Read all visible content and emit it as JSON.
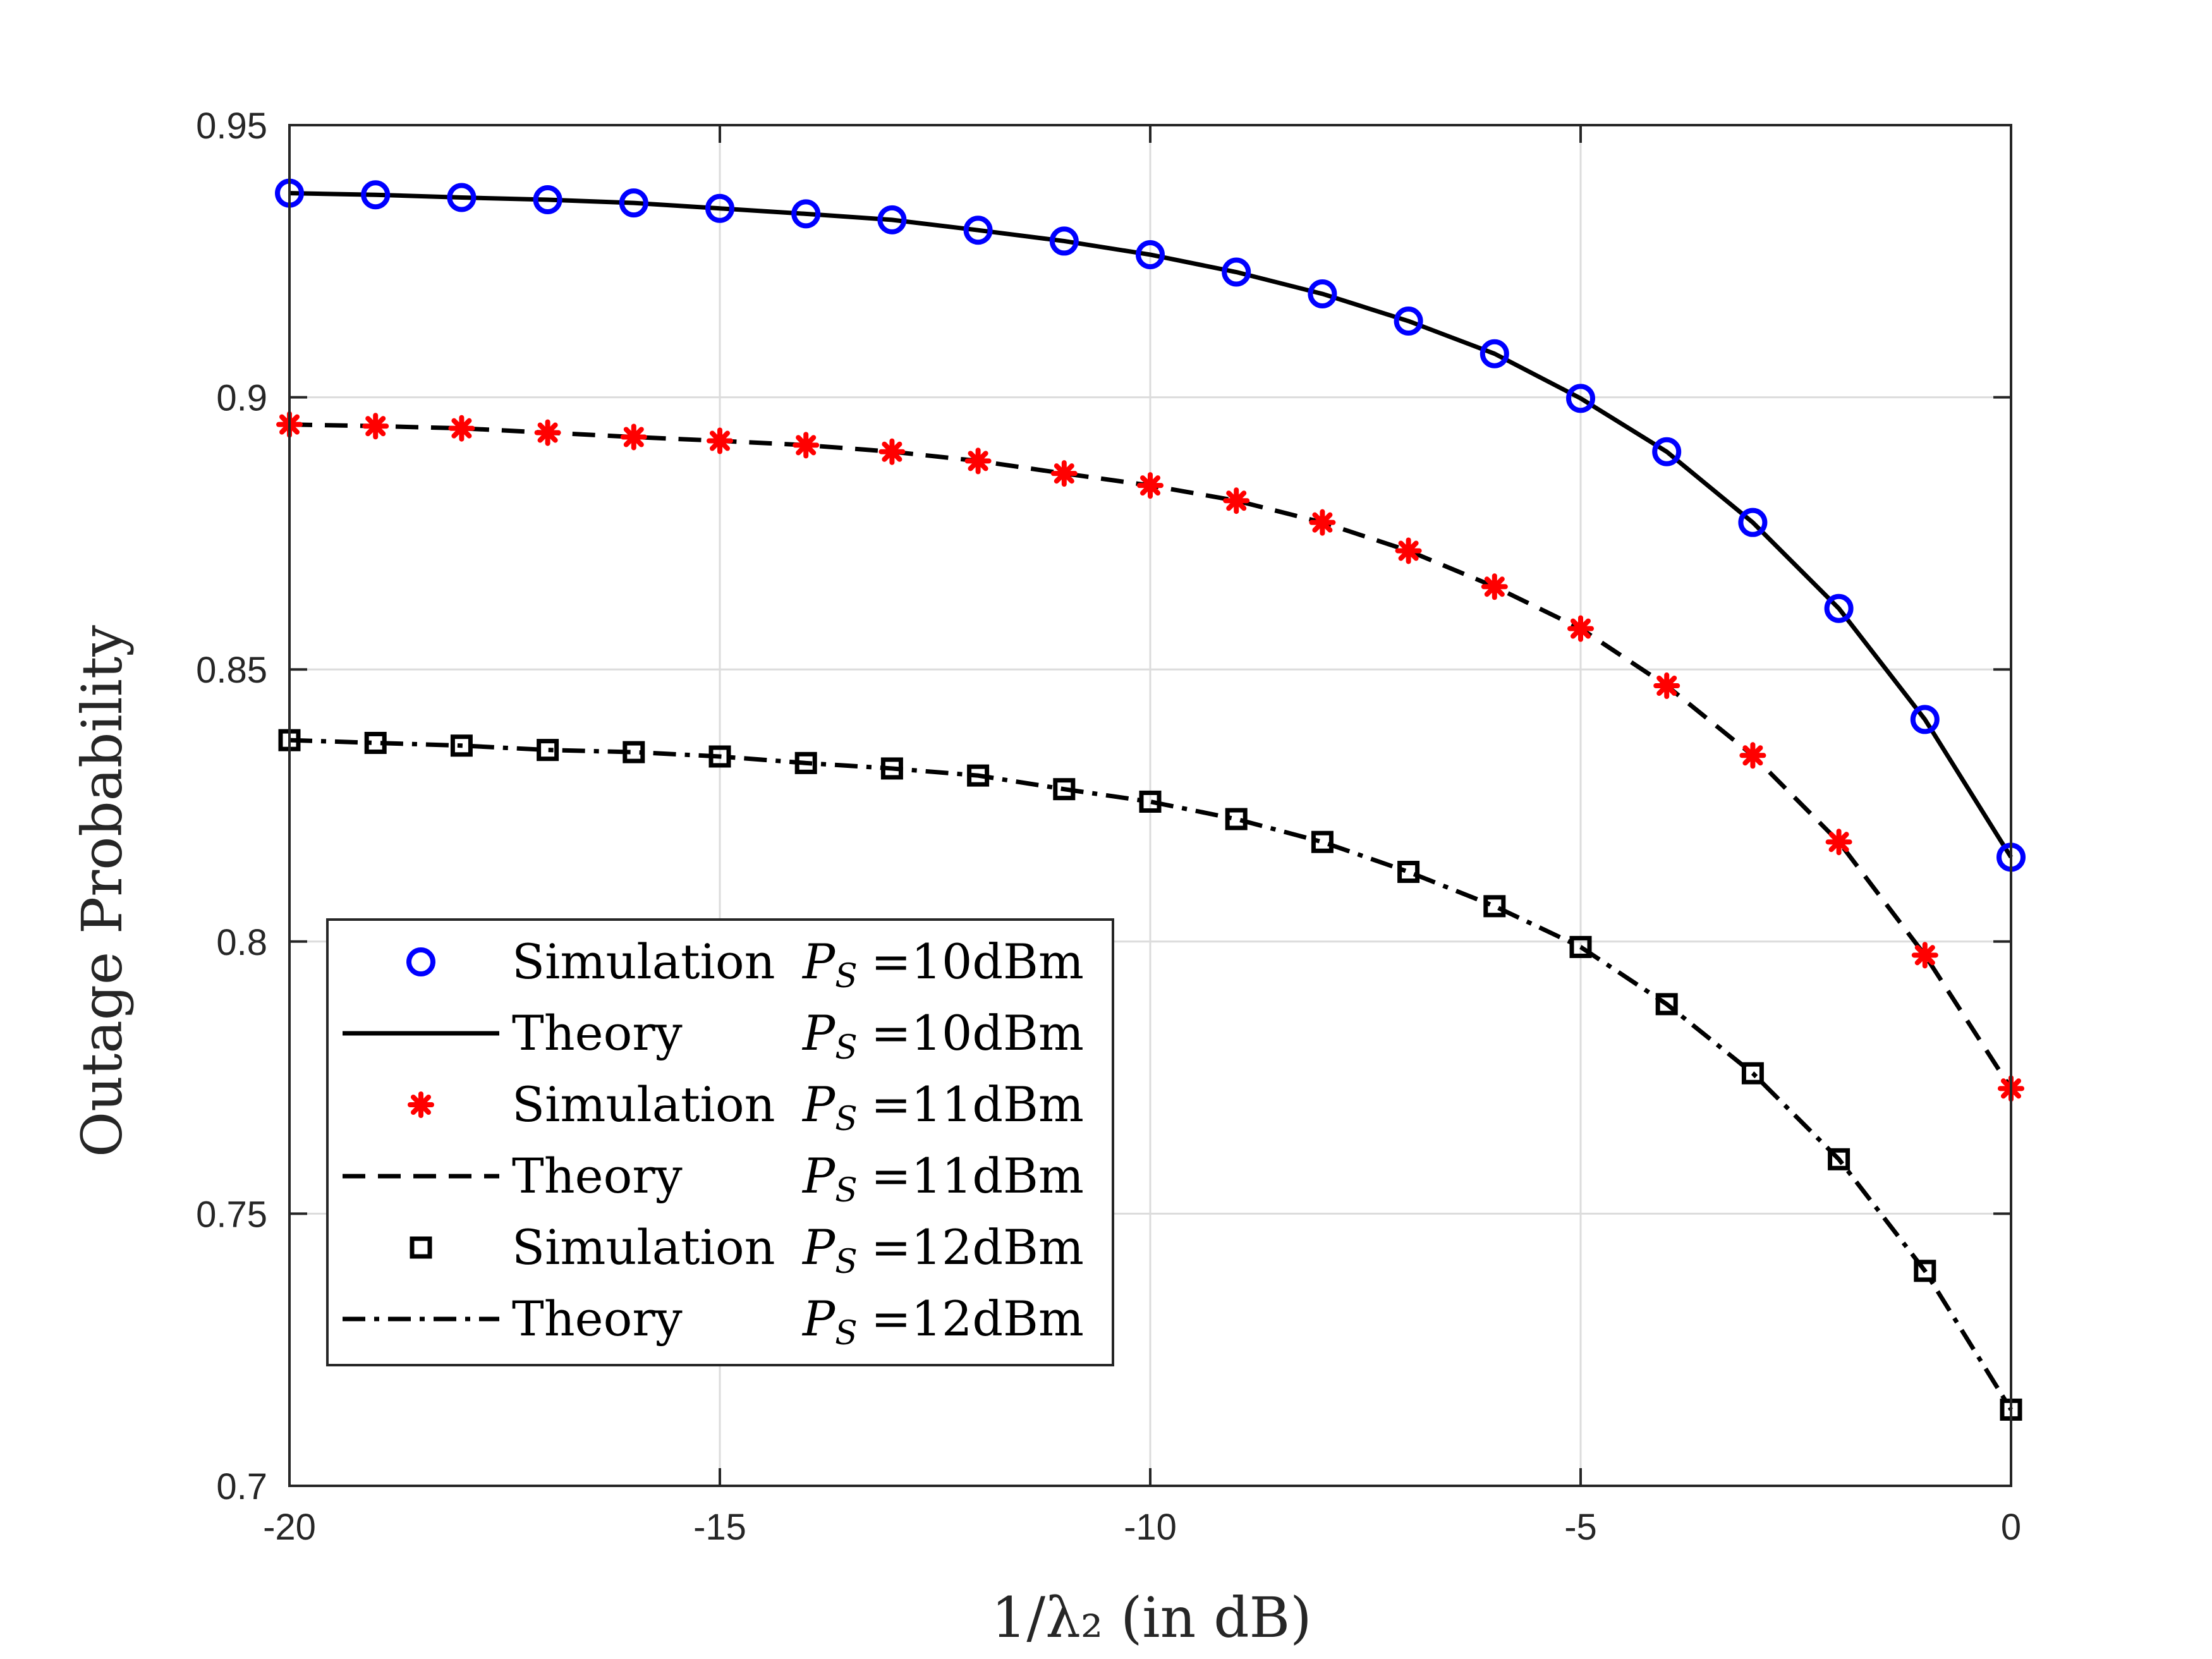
{
  "chart_data": {
    "type": "line",
    "title": "",
    "xlabel": "1/λ₂   (in dB)",
    "ylabel": "Outage Probability",
    "xlim": [
      -20,
      0
    ],
    "ylim": [
      0.7,
      0.95
    ],
    "grid": true,
    "x_ticks": [
      -20,
      -15,
      -10,
      -5,
      0
    ],
    "x_tick_labels": [
      "-20",
      "-15",
      "-10",
      "-5",
      "0"
    ],
    "y_ticks": [
      0.7,
      0.75,
      0.8,
      0.85,
      0.9,
      0.95
    ],
    "y_tick_labels": [
      "0.7",
      "0.75",
      "0.8",
      "0.85",
      "0.9",
      "0.95"
    ],
    "x": [
      -20,
      -19,
      -18,
      -17,
      -16,
      -15,
      -14,
      -13,
      -12,
      -11,
      -10,
      -9,
      -8,
      -7,
      -6,
      -5,
      -4,
      -3,
      -2,
      -1,
      0
    ],
    "legend_position": "bottom-left",
    "series": [
      {
        "name": "Simulation  PS=10dBm",
        "legend_label": "Simulation",
        "legend_value": "=10dBm",
        "kind": "markers",
        "marker": "circle",
        "color": "#0000ff",
        "values": [
          0.9375,
          0.9372,
          0.9367,
          0.9363,
          0.9357,
          0.9347,
          0.9337,
          0.9326,
          0.9307,
          0.9287,
          0.9262,
          0.923,
          0.919,
          0.914,
          0.908,
          0.8998,
          0.89,
          0.877,
          0.8612,
          0.8408,
          0.8155
        ]
      },
      {
        "name": "Theory  PS=10dBm",
        "legend_label": "Theory",
        "legend_value": "=10dBm",
        "kind": "line",
        "dash": "solid",
        "color": "#000000",
        "values": [
          0.9375,
          0.9372,
          0.9367,
          0.9363,
          0.9357,
          0.9347,
          0.9337,
          0.9326,
          0.9307,
          0.9287,
          0.9262,
          0.923,
          0.919,
          0.914,
          0.908,
          0.8998,
          0.89,
          0.877,
          0.8612,
          0.8408,
          0.8155
        ]
      },
      {
        "name": "Simulation  PS=11dBm",
        "legend_label": "Simulation",
        "legend_value": "=11dBm",
        "kind": "markers",
        "marker": "asterisk",
        "color": "#ff0000",
        "values": [
          0.895,
          0.8947,
          0.8943,
          0.8935,
          0.8927,
          0.892,
          0.8912,
          0.89,
          0.8883,
          0.886,
          0.8838,
          0.881,
          0.877,
          0.8718,
          0.8652,
          0.8575,
          0.847,
          0.8342,
          0.8183,
          0.7975,
          0.773
        ]
      },
      {
        "name": "Theory  PS=11dBm",
        "legend_label": "Theory",
        "legend_value": "=11dBm",
        "kind": "line",
        "dash": "dashed",
        "color": "#000000",
        "values": [
          0.895,
          0.8947,
          0.8943,
          0.8935,
          0.8927,
          0.892,
          0.8912,
          0.89,
          0.8883,
          0.886,
          0.8838,
          0.881,
          0.877,
          0.8718,
          0.8652,
          0.8575,
          0.847,
          0.8342,
          0.8183,
          0.7975,
          0.773
        ]
      },
      {
        "name": "Simulation  PS=12dBm",
        "legend_label": "Simulation",
        "legend_value": "=12dBm",
        "kind": "markers",
        "marker": "square",
        "color": "#000000",
        "values": [
          0.837,
          0.8365,
          0.836,
          0.8352,
          0.8348,
          0.834,
          0.8328,
          0.8318,
          0.8305,
          0.828,
          0.8257,
          0.8225,
          0.8183,
          0.8128,
          0.8065,
          0.799,
          0.7885,
          0.7758,
          0.76,
          0.7395,
          0.714
        ]
      },
      {
        "name": "Theory  PS=12dBm",
        "legend_label": "Theory",
        "legend_value": "=12dBm",
        "kind": "line",
        "dash": "dashdot",
        "color": "#000000",
        "values": [
          0.837,
          0.8365,
          0.836,
          0.8352,
          0.8348,
          0.834,
          0.8328,
          0.8318,
          0.8305,
          0.828,
          0.8257,
          0.8225,
          0.8183,
          0.8128,
          0.8065,
          0.799,
          0.7885,
          0.7758,
          0.76,
          0.7395,
          0.714
        ]
      }
    ]
  }
}
